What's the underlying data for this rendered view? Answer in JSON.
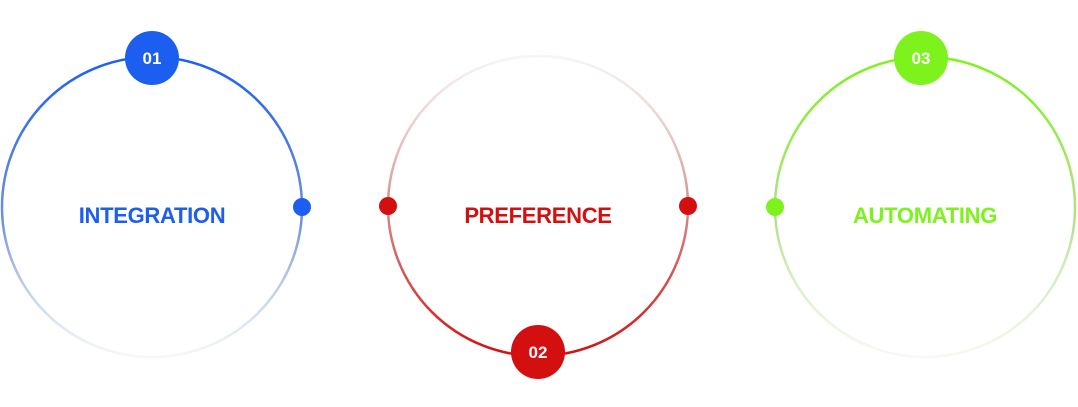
{
  "steps": [
    {
      "number": "01",
      "label": "INTEGRATION",
      "color": "#1c5ff0",
      "fade_color": "#c9d3e4",
      "badge_position": "top",
      "connector_dots": [
        "right"
      ]
    },
    {
      "number": "02",
      "label": "PREFERENCE",
      "color": "#d40f0f",
      "fade_color": "#e6d2d2",
      "badge_position": "bottom",
      "connector_dots": [
        "left",
        "right"
      ]
    },
    {
      "number": "03",
      "label": "AUTOMATING",
      "color": "#7ef21c",
      "fade_color": "#d8e8c8",
      "badge_position": "top",
      "connector_dots": [
        "left"
      ]
    }
  ]
}
